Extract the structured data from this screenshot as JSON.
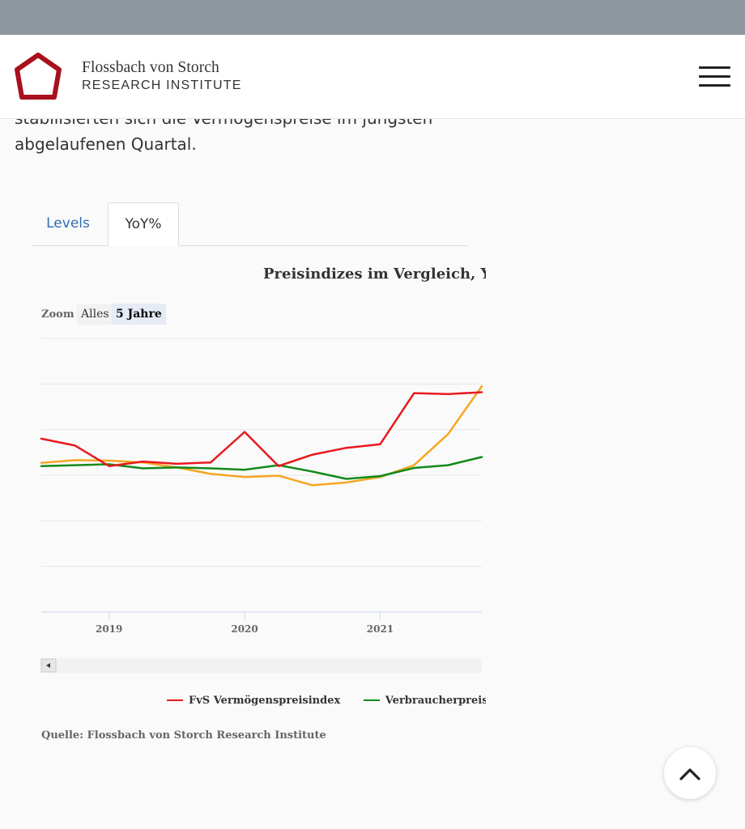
{
  "header": {
    "brand_line1": "Flossbach von Storch",
    "brand_line2": "RESEARCH INSTITUTE"
  },
  "article": {
    "intro_line1": "stabilisierten sich die Vermögenspreise im jüngsten",
    "intro_line2": "abgelaufenen Quartal."
  },
  "tabs": [
    {
      "label": "Levels",
      "active": false
    },
    {
      "label": "YoY%",
      "active": true
    }
  ],
  "chart": {
    "title": "Preisindizes im Vergleich, YoY",
    "zoom_label": "Zoom",
    "zoom_options": [
      {
        "label": "Alles",
        "selected": false
      },
      {
        "label": "5 Jahre",
        "selected": true
      }
    ],
    "source": "Quelle: Flossbach von Storch Research Institute"
  },
  "chart_data": {
    "type": "line",
    "title": "Preisindizes im Vergleich, YoY",
    "x": [
      2018.5,
      2018.75,
      2019.0,
      2019.25,
      2019.5,
      2019.75,
      2020.0,
      2020.25,
      2020.5,
      2020.75,
      2021.0,
      2021.25,
      2021.5,
      2021.75
    ],
    "x_ticks": [
      "2019",
      "2020",
      "2021"
    ],
    "x_tick_values": [
      2019,
      2020,
      2021
    ],
    "xlim": [
      2018.5,
      2021.75
    ],
    "ylim": [
      -2,
      4
    ],
    "grid": true,
    "legend_placement": "bottom",
    "series": [
      {
        "name": "FvS Vermögenspreisindex",
        "color": "#e8191e",
        "values": [
          1.8,
          1.65,
          1.2,
          1.3,
          1.25,
          1.28,
          1.95,
          1.2,
          1.45,
          1.6,
          1.68,
          2.8,
          2.78,
          2.82
        ]
      },
      {
        "name": "Verbraucherpreise",
        "color": "#138a18",
        "values": [
          1.2,
          1.22,
          1.24,
          1.15,
          1.17,
          1.15,
          1.12,
          1.22,
          1.08,
          0.92,
          0.98,
          1.16,
          1.22,
          1.4
        ]
      },
      {
        "name": "",
        "color": "#f5a623",
        "values": [
          1.27,
          1.33,
          1.32,
          1.28,
          1.17,
          1.03,
          0.96,
          0.99,
          0.78,
          0.84,
          0.96,
          1.22,
          1.9,
          2.95
        ]
      }
    ],
    "zoom_options": [
      "Alles",
      "5 Jahre"
    ],
    "zoom_selected": "5 Jahre"
  }
}
